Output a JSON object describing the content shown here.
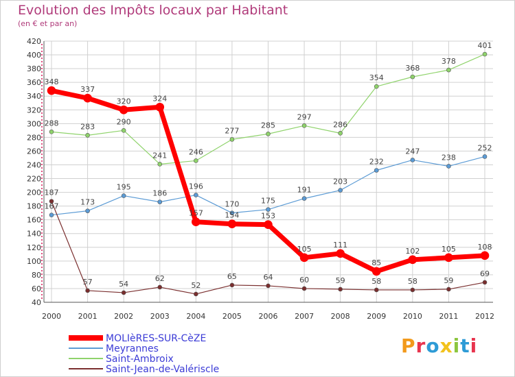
{
  "chart_data": {
    "type": "line",
    "title": "Evolution des Impôts locaux par Habitant",
    "subtitle": "(en € et par an)",
    "x": [
      "2000",
      "2001",
      "2002",
      "2003",
      "2004",
      "2005",
      "2006",
      "2007",
      "2008",
      "2009",
      "2010",
      "2011",
      "2012"
    ],
    "ylim": [
      40,
      420
    ],
    "yticks": [
      40,
      60,
      80,
      100,
      120,
      140,
      160,
      180,
      200,
      220,
      240,
      260,
      280,
      300,
      320,
      340,
      360,
      380,
      400,
      420
    ],
    "grid": true,
    "series": [
      {
        "name": "MOLIèRES-SUR-CèZE",
        "color": "#ff0000",
        "values": [
          348,
          337,
          320,
          324,
          157,
          154,
          153,
          105,
          111,
          85,
          102,
          105,
          108
        ]
      },
      {
        "name": "Meyrannes",
        "color": "#5b9bd5",
        "values": [
          167,
          173,
          195,
          186,
          196,
          170,
          175,
          191,
          203,
          232,
          247,
          238,
          252
        ]
      },
      {
        "name": "Saint-Ambroix",
        "color": "#8fd36b",
        "values": [
          288,
          283,
          290,
          241,
          246,
          277,
          285,
          297,
          286,
          354,
          368,
          378,
          401
        ]
      },
      {
        "name": "Saint-Jean-de-Valériscle",
        "color": "#7a2e2e",
        "values": [
          187,
          57,
          54,
          62,
          52,
          65,
          64,
          60,
          59,
          58,
          58,
          59,
          69
        ]
      }
    ]
  },
  "logo": {
    "text": "Proxiti"
  }
}
